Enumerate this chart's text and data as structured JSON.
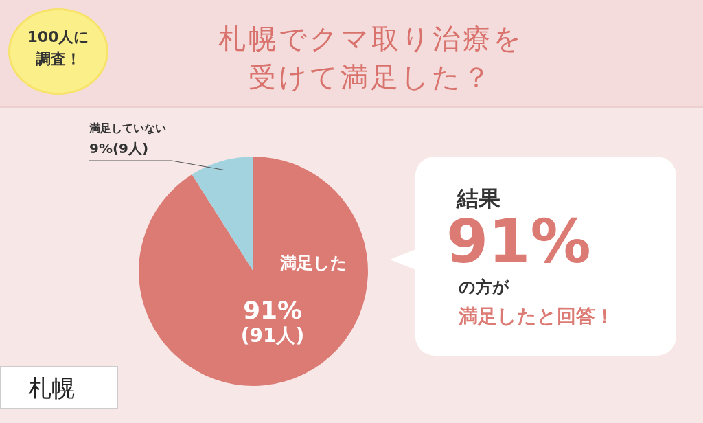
{
  "chart_data": {
    "type": "pie",
    "title": "札幌でクマ取り治療を受けて満足した？",
    "categories": [
      "満足した",
      "満足していない"
    ],
    "values": [
      91,
      9
    ],
    "colors": [
      "#dc7b74",
      "#a4d3e0"
    ],
    "value_labels": [
      "91%(91人)",
      "9%(9人)"
    ],
    "legend": false,
    "annotations": [
      "100人に調査！",
      "札幌",
      "結果",
      "91%",
      "の方が",
      "満足したと回答！"
    ]
  }
}
